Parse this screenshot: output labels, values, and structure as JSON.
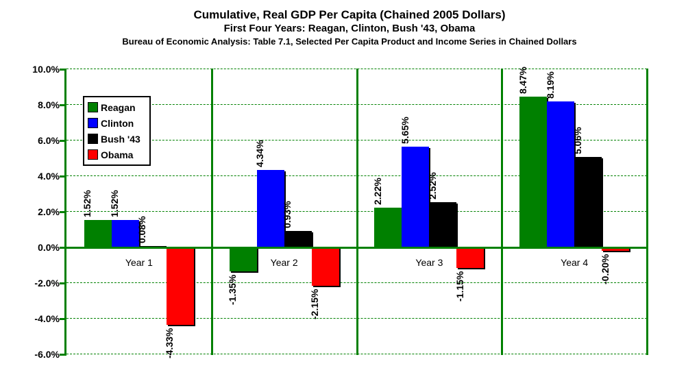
{
  "header": {
    "title": "Cumulative, Real GDP Per Capita (Chained 2005 Dollars)",
    "subtitle": "First Four Years: Reagan, Clinton, Bush '43, Obama",
    "source": "Bureau of Economic Analysis: Table 7.1, Selected Per Capita Product and Income Series in Chained Dollars"
  },
  "chart_data": {
    "type": "bar",
    "title": "Cumulative, Real GDP Per Capita (Chained 2005 Dollars)",
    "subtitle": "First Four Years: Reagan, Clinton, Bush '43, Obama",
    "source_note": "Bureau of Economic Analysis: Table 7.1, Selected Per Capita Product and Income Series in Chained Dollars",
    "categories": [
      "Year 1",
      "Year 2",
      "Year 3",
      "Year 4"
    ],
    "series": [
      {
        "name": "Reagan",
        "color": "#008000",
        "values": [
          1.52,
          -1.35,
          2.22,
          8.47
        ],
        "labels": [
          "1.52%",
          "-1.35%",
          "2.22%",
          "8.47%"
        ]
      },
      {
        "name": "Clinton",
        "color": "#0000ff",
        "values": [
          1.52,
          4.34,
          5.65,
          8.19
        ],
        "labels": [
          "1.52%",
          "4.34%",
          "5.65%",
          "8.19%"
        ]
      },
      {
        "name": "Bush '43",
        "color": "#000000",
        "values": [
          0.08,
          0.93,
          2.52,
          5.06
        ],
        "labels": [
          "0.08%",
          "0.93%",
          "2.52%",
          "5.06%"
        ]
      },
      {
        "name": "Obama",
        "color": "#ff0000",
        "values": [
          -4.33,
          -2.15,
          -1.15,
          -0.2
        ],
        "labels": [
          "-4.33%",
          "-2.15%",
          "-1.15%",
          "-0.20%"
        ]
      }
    ],
    "y_axis": {
      "min": -6,
      "max": 10,
      "step": 2,
      "format": "percent",
      "tick_labels": [
        "10.0%",
        "8.0%",
        "6.0%",
        "4.0%",
        "2.0%",
        "0.0%",
        "-2.0%",
        "-4.0%",
        "-6.0%"
      ]
    },
    "legend": {
      "position": "inside-top-left",
      "entries": [
        "Reagan",
        "Clinton",
        "Bush '43",
        "Obama"
      ]
    },
    "grid": {
      "horizontal": "dashed",
      "vertical_group_separators": true,
      "color": "#008000"
    },
    "colors": {
      "axis": "#008000",
      "zero_line": "#008000",
      "plot_border": "#008000",
      "background": "#ffffff"
    }
  }
}
